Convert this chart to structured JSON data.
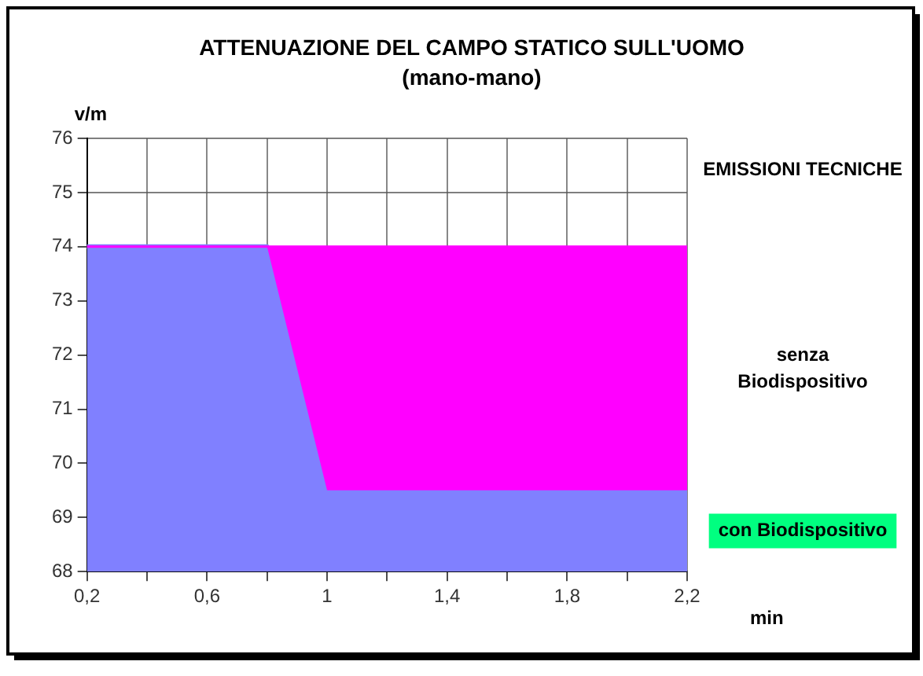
{
  "chart_data": {
    "type": "area",
    "title": "ATTENUAZIONE DEL CAMPO STATICO SULL'UOMO",
    "subtitle": "(mano-mano)",
    "ylabel": "v/m",
    "xlabel": "min",
    "annotations": [
      "EMISSIONI TECNICHE"
    ],
    "categories": [
      "0,2",
      null,
      "0,6",
      null,
      "1",
      null,
      "1,4",
      null,
      "1,8",
      null,
      "2,2"
    ],
    "series": [
      {
        "name": "con Biodispositivo",
        "color": "#8080ff",
        "values": [
          74,
          74,
          74,
          74,
          69.5,
          69.5,
          69.5,
          69.5,
          69.5,
          69.5,
          69.5
        ]
      },
      {
        "name": "senza Biodispositivo",
        "color": "#ff00ff",
        "values": [
          74,
          74,
          74,
          74,
          74,
          74,
          74,
          74,
          74,
          74,
          74
        ]
      }
    ],
    "ylim": [
      68,
      76
    ],
    "yticks": [
      68,
      69,
      70,
      71,
      72,
      73,
      74,
      75,
      76
    ],
    "grid": true
  }
}
